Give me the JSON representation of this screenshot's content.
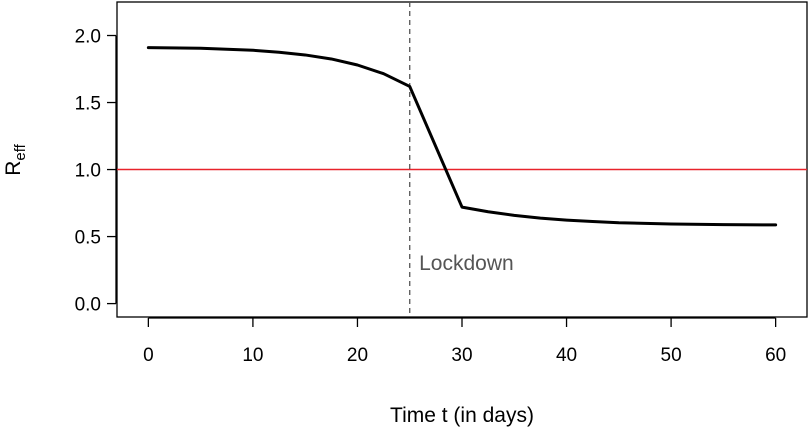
{
  "chart_data": {
    "type": "line",
    "title": "",
    "xlabel": "Time t (in days)",
    "ylabel": "R",
    "ylabel_subscript": "eff",
    "xlim": [
      -3,
      63
    ],
    "ylim": [
      -0.1,
      2.25
    ],
    "x_ticks": [
      0,
      10,
      20,
      30,
      40,
      50,
      60
    ],
    "x_tick_labels": [
      "0",
      "10",
      "20",
      "30",
      "40",
      "50",
      "60"
    ],
    "y_ticks": [
      0.0,
      0.5,
      1.0,
      1.5,
      2.0
    ],
    "y_tick_labels": [
      "0.0",
      "0.5",
      "1.0",
      "1.5",
      "2.0"
    ],
    "grid": false,
    "series": [
      {
        "color": "#000000",
        "x": [
          0,
          5,
          10,
          12.5,
          15,
          17.5,
          20,
          22.5,
          25,
          30,
          32.5,
          35,
          37.5,
          40,
          42.5,
          45,
          50,
          55,
          60
        ],
        "y": [
          1.91,
          1.905,
          1.89,
          1.875,
          1.855,
          1.825,
          1.78,
          1.715,
          1.62,
          0.72,
          0.685,
          0.658,
          0.638,
          0.623,
          0.612,
          0.603,
          0.594,
          0.589,
          0.587
        ]
      }
    ],
    "reference_lines": [
      {
        "orientation": "horizontal",
        "value": 1.0,
        "color": "#e8232b",
        "style": "solid"
      },
      {
        "orientation": "vertical",
        "value": 25,
        "color": "#555555",
        "style": "dashed"
      }
    ],
    "annotations": [
      {
        "text": "Lockdown",
        "x": 25.9,
        "y": 0.25
      }
    ]
  }
}
